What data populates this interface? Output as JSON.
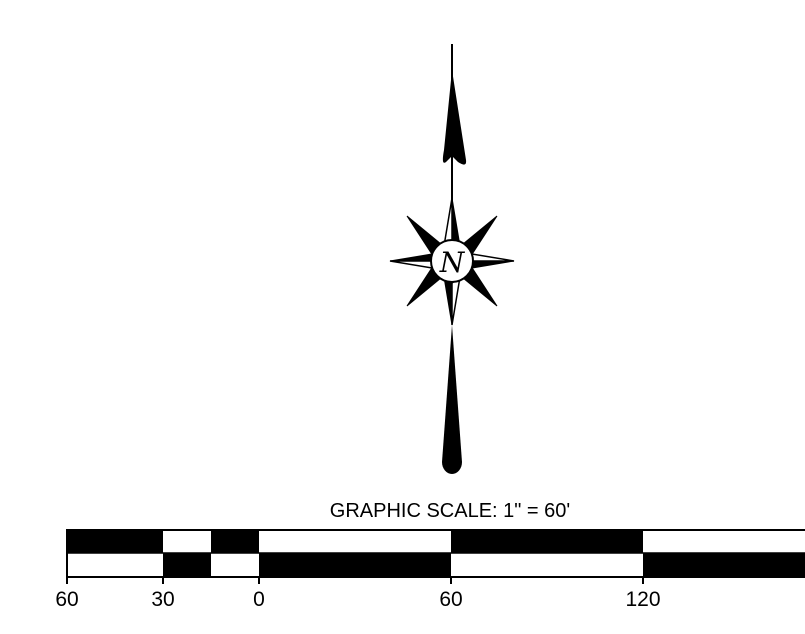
{
  "north_arrow": {
    "letter": "N"
  },
  "scale": {
    "title": "GRAPHIC SCALE: 1\" = 60'",
    "tick_labels": [
      "60",
      "30",
      "0",
      "60",
      "120"
    ],
    "colors": {
      "ink": "#000000",
      "paper": "#ffffff"
    }
  }
}
